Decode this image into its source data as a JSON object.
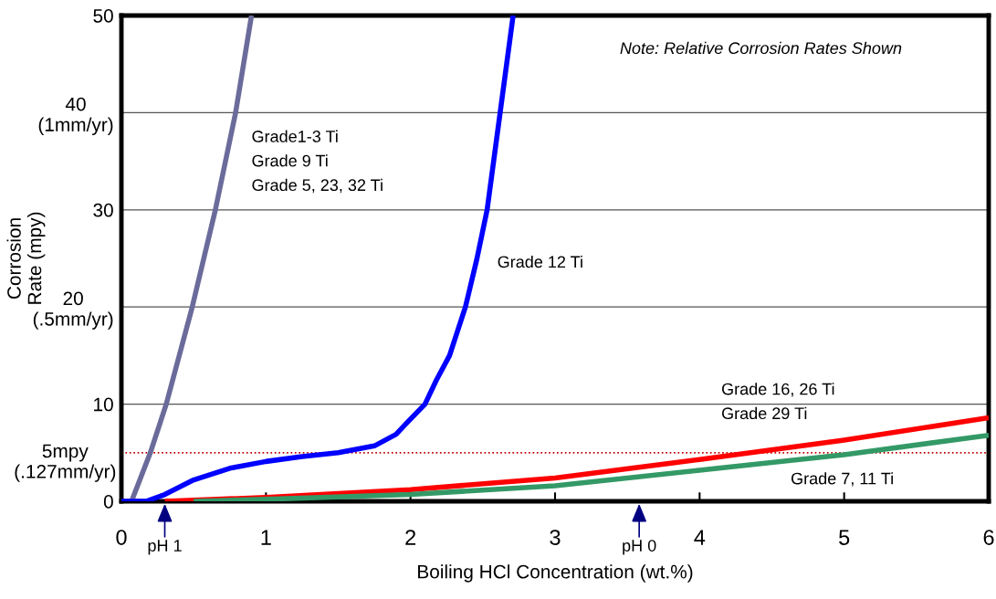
{
  "chart_data": {
    "type": "line",
    "xlabel": "Boiling HCl Concentration (wt.%)",
    "ylabel": "Corrosion\nRate (mpy)",
    "xlim": [
      0,
      6
    ],
    "xticks": [
      0,
      1,
      2,
      3,
      4,
      5,
      6
    ],
    "ylim": [
      0,
      50
    ],
    "yticks": [
      0,
      {
        "value": 10,
        "label": "10"
      },
      {
        "value": 20,
        "label": "20\n(.5mm/yr)"
      },
      30,
      {
        "value": 40,
        "label": "40\n(1mm/yr)"
      },
      50
    ],
    "grid": "y",
    "legend": false,
    "marker": "none",
    "line_style": "solid",
    "series": [
      {
        "name": "Grade1-3 Ti\nGrade 9 Ti\nGrade 5, 23, 32 Ti",
        "color": "#6b6b9b",
        "x": [
          0.07,
          0.2,
          0.31,
          0.49,
          0.65,
          0.79,
          0.9
        ],
        "values": [
          0,
          5,
          10,
          20,
          30,
          40,
          50
        ]
      },
      {
        "name": "Grade 12 Ti",
        "color": "#0000ff",
        "x": [
          0,
          0.17,
          0.3,
          0.5,
          0.75,
          1.0,
          1.25,
          1.5,
          1.75,
          1.9,
          1.97,
          2.1,
          2.18,
          2.27,
          2.38,
          2.46,
          2.53,
          2.62,
          2.71
        ],
        "values": [
          0,
          0,
          0.7,
          2.2,
          3.4,
          4.1,
          4.6,
          5.0,
          5.7,
          6.9,
          8.0,
          10,
          12.5,
          15,
          20,
          25,
          30,
          40,
          50
        ]
      },
      {
        "name": "Grade 16, 26 Ti\nGrade 29 Ti",
        "color": "#ff0000",
        "x": [
          0.3,
          1,
          2,
          3,
          4,
          5,
          6
        ],
        "values": [
          0,
          0.4,
          1.2,
          2.4,
          4.3,
          6.3,
          8.6
        ]
      },
      {
        "name": "Grade 7, 11 Ti",
        "color": "#339966",
        "x": [
          0.5,
          1,
          2,
          3,
          4,
          5,
          6
        ],
        "values": [
          0,
          0.2,
          0.7,
          1.6,
          3.2,
          4.8,
          6.8
        ]
      }
    ],
    "ref_lines": [
      {
        "axis": "y",
        "value": 5,
        "label": "5mpy\n(.127mm/yr)",
        "color": "#c00000",
        "line_style": "dotted"
      }
    ],
    "annotations": [
      "Note: Relative Corrosion Rates Shown",
      "pH 1",
      "pH 0"
    ]
  }
}
